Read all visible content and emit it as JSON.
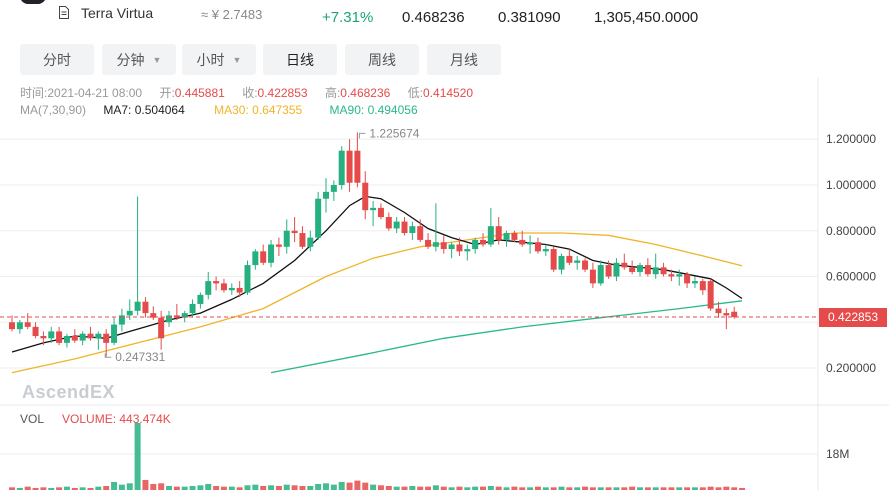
{
  "header": {
    "coin_name": "Terra Virtua",
    "approx_price": "≈ ¥ 2.7483",
    "change": "+7.31%",
    "high_24h": "0.468236",
    "low_24h": "0.381090",
    "volume_24h": "1,305,450.0000"
  },
  "tabs": [
    {
      "label": "分时",
      "dropdown": false,
      "active": false
    },
    {
      "label": "分钟",
      "dropdown": true,
      "active": false
    },
    {
      "label": "小时",
      "dropdown": true,
      "active": false
    },
    {
      "label": "日线",
      "dropdown": false,
      "active": true
    },
    {
      "label": "周线",
      "dropdown": false,
      "active": false
    },
    {
      "label": "月线",
      "dropdown": false,
      "active": false
    }
  ],
  "info": {
    "time_label": "时间:",
    "time_value": "2021-04-21 08:00",
    "open_label": "开:",
    "open_value": "0.445881",
    "close_label": "收:",
    "close_value": "0.422853",
    "high_label": "高:",
    "high_value": "0.468236",
    "low_label": "低:",
    "low_value": "0.414520"
  },
  "ma": {
    "title": "MA(7,30,90)",
    "ma7_label": "MA7: 0.504064",
    "ma30_label": "MA30: 0.647355",
    "ma90_label": "MA90: 0.494056"
  },
  "volume": {
    "title": "VOL",
    "label": "VOLUME: 443.474K",
    "axis_label": "18M"
  },
  "watermark": "AscendEX",
  "current_price_tag": "0.422853",
  "colors": {
    "up": "#26b07f",
    "down": "#e54b4b",
    "ma7": "#111111",
    "ma30": "#f0b429",
    "ma90": "#2ab88a",
    "grid": "#eeeeee"
  },
  "chart_data": {
    "type": "candlestick",
    "y_axis": {
      "ticks": [
        "1.200000",
        "1.000000",
        "0.800000",
        "0.600000",
        "0.200000"
      ],
      "tick_values": [
        1.2,
        1.0,
        0.8,
        0.6,
        0.2
      ],
      "range": [
        0.05,
        1.31
      ]
    },
    "annotations": {
      "max_label": "1.225674",
      "max_value": 1.225674,
      "max_index": 44,
      "min_label": "0.247331",
      "min_value": 0.247331,
      "min_index": 12,
      "current_value": 0.422853
    },
    "candles": [
      {
        "o": 0.4,
        "h": 0.43,
        "l": 0.36,
        "c": 0.37
      },
      {
        "o": 0.37,
        "h": 0.41,
        "l": 0.35,
        "c": 0.4
      },
      {
        "o": 0.4,
        "h": 0.44,
        "l": 0.37,
        "c": 0.38
      },
      {
        "o": 0.38,
        "h": 0.4,
        "l": 0.33,
        "c": 0.34
      },
      {
        "o": 0.34,
        "h": 0.36,
        "l": 0.3,
        "c": 0.33
      },
      {
        "o": 0.33,
        "h": 0.38,
        "l": 0.31,
        "c": 0.36
      },
      {
        "o": 0.36,
        "h": 0.38,
        "l": 0.3,
        "c": 0.31
      },
      {
        "o": 0.31,
        "h": 0.35,
        "l": 0.29,
        "c": 0.34
      },
      {
        "o": 0.34,
        "h": 0.37,
        "l": 0.31,
        "c": 0.32
      },
      {
        "o": 0.32,
        "h": 0.36,
        "l": 0.3,
        "c": 0.35
      },
      {
        "o": 0.35,
        "h": 0.38,
        "l": 0.32,
        "c": 0.33
      },
      {
        "o": 0.33,
        "h": 0.36,
        "l": 0.28,
        "c": 0.35
      },
      {
        "o": 0.35,
        "h": 0.37,
        "l": 0.25,
        "c": 0.31
      },
      {
        "o": 0.31,
        "h": 0.42,
        "l": 0.3,
        "c": 0.39
      },
      {
        "o": 0.39,
        "h": 0.46,
        "l": 0.36,
        "c": 0.43
      },
      {
        "o": 0.43,
        "h": 0.5,
        "l": 0.41,
        "c": 0.45
      },
      {
        "o": 0.45,
        "h": 0.95,
        "l": 0.43,
        "c": 0.49
      },
      {
        "o": 0.49,
        "h": 0.51,
        "l": 0.42,
        "c": 0.44
      },
      {
        "o": 0.44,
        "h": 0.47,
        "l": 0.41,
        "c": 0.42
      },
      {
        "o": 0.42,
        "h": 0.45,
        "l": 0.28,
        "c": 0.33
      },
      {
        "o": 0.4,
        "h": 0.45,
        "l": 0.38,
        "c": 0.43
      },
      {
        "o": 0.43,
        "h": 0.48,
        "l": 0.41,
        "c": 0.42
      },
      {
        "o": 0.42,
        "h": 0.45,
        "l": 0.4,
        "c": 0.44
      },
      {
        "o": 0.44,
        "h": 0.5,
        "l": 0.42,
        "c": 0.48
      },
      {
        "o": 0.48,
        "h": 0.53,
        "l": 0.46,
        "c": 0.52
      },
      {
        "o": 0.52,
        "h": 0.62,
        "l": 0.5,
        "c": 0.58
      },
      {
        "o": 0.58,
        "h": 0.6,
        "l": 0.54,
        "c": 0.57
      },
      {
        "o": 0.57,
        "h": 0.59,
        "l": 0.53,
        "c": 0.54
      },
      {
        "o": 0.54,
        "h": 0.57,
        "l": 0.52,
        "c": 0.55
      },
      {
        "o": 0.55,
        "h": 0.58,
        "l": 0.51,
        "c": 0.53
      },
      {
        "o": 0.53,
        "h": 0.67,
        "l": 0.52,
        "c": 0.65
      },
      {
        "o": 0.65,
        "h": 0.72,
        "l": 0.63,
        "c": 0.71
      },
      {
        "o": 0.71,
        "h": 0.74,
        "l": 0.65,
        "c": 0.66
      },
      {
        "o": 0.66,
        "h": 0.76,
        "l": 0.64,
        "c": 0.74
      },
      {
        "o": 0.74,
        "h": 0.77,
        "l": 0.69,
        "c": 0.73
      },
      {
        "o": 0.73,
        "h": 0.85,
        "l": 0.7,
        "c": 0.8
      },
      {
        "o": 0.8,
        "h": 0.86,
        "l": 0.75,
        "c": 0.79
      },
      {
        "o": 0.79,
        "h": 0.82,
        "l": 0.72,
        "c": 0.73
      },
      {
        "o": 0.73,
        "h": 0.8,
        "l": 0.71,
        "c": 0.77
      },
      {
        "o": 0.77,
        "h": 0.97,
        "l": 0.76,
        "c": 0.94
      },
      {
        "o": 0.94,
        "h": 1.03,
        "l": 0.88,
        "c": 0.97
      },
      {
        "o": 0.97,
        "h": 1.02,
        "l": 0.93,
        "c": 1.0
      },
      {
        "o": 1.0,
        "h": 1.17,
        "l": 0.98,
        "c": 1.15
      },
      {
        "o": 1.15,
        "h": 1.2,
        "l": 0.97,
        "c": 1.01
      },
      {
        "o": 1.15,
        "h": 1.23,
        "l": 0.99,
        "c": 1.01
      },
      {
        "o": 1.01,
        "h": 1.06,
        "l": 0.85,
        "c": 0.89
      },
      {
        "o": 0.89,
        "h": 0.93,
        "l": 0.82,
        "c": 0.9
      },
      {
        "o": 0.9,
        "h": 0.92,
        "l": 0.85,
        "c": 0.86
      },
      {
        "o": 0.86,
        "h": 0.88,
        "l": 0.8,
        "c": 0.81
      },
      {
        "o": 0.81,
        "h": 0.86,
        "l": 0.79,
        "c": 0.84
      },
      {
        "o": 0.84,
        "h": 0.86,
        "l": 0.78,
        "c": 0.79
      },
      {
        "o": 0.79,
        "h": 0.84,
        "l": 0.76,
        "c": 0.82
      },
      {
        "o": 0.82,
        "h": 0.85,
        "l": 0.75,
        "c": 0.76
      },
      {
        "o": 0.76,
        "h": 0.79,
        "l": 0.72,
        "c": 0.73
      },
      {
        "o": 0.73,
        "h": 0.92,
        "l": 0.71,
        "c": 0.75
      },
      {
        "o": 0.75,
        "h": 0.78,
        "l": 0.7,
        "c": 0.72
      },
      {
        "o": 0.72,
        "h": 0.75,
        "l": 0.68,
        "c": 0.74
      },
      {
        "o": 0.74,
        "h": 0.77,
        "l": 0.69,
        "c": 0.71
      },
      {
        "o": 0.71,
        "h": 0.74,
        "l": 0.67,
        "c": 0.72
      },
      {
        "o": 0.72,
        "h": 0.77,
        "l": 0.7,
        "c": 0.76
      },
      {
        "o": 0.76,
        "h": 0.79,
        "l": 0.73,
        "c": 0.74
      },
      {
        "o": 0.74,
        "h": 0.9,
        "l": 0.73,
        "c": 0.82
      },
      {
        "o": 0.82,
        "h": 0.86,
        "l": 0.74,
        "c": 0.76
      },
      {
        "o": 0.76,
        "h": 0.8,
        "l": 0.73,
        "c": 0.79
      },
      {
        "o": 0.79,
        "h": 0.8,
        "l": 0.75,
        "c": 0.76
      },
      {
        "o": 0.76,
        "h": 0.8,
        "l": 0.73,
        "c": 0.74
      },
      {
        "o": 0.74,
        "h": 0.78,
        "l": 0.7,
        "c": 0.75
      },
      {
        "o": 0.75,
        "h": 0.77,
        "l": 0.7,
        "c": 0.71
      },
      {
        "o": 0.71,
        "h": 0.74,
        "l": 0.69,
        "c": 0.72
      },
      {
        "o": 0.72,
        "h": 0.73,
        "l": 0.62,
        "c": 0.63
      },
      {
        "o": 0.63,
        "h": 0.7,
        "l": 0.61,
        "c": 0.69
      },
      {
        "o": 0.69,
        "h": 0.72,
        "l": 0.65,
        "c": 0.66
      },
      {
        "o": 0.66,
        "h": 0.69,
        "l": 0.63,
        "c": 0.67
      },
      {
        "o": 0.67,
        "h": 0.68,
        "l": 0.62,
        "c": 0.63
      },
      {
        "o": 0.63,
        "h": 0.66,
        "l": 0.55,
        "c": 0.57
      },
      {
        "o": 0.57,
        "h": 0.67,
        "l": 0.56,
        "c": 0.65
      },
      {
        "o": 0.65,
        "h": 0.67,
        "l": 0.59,
        "c": 0.6
      },
      {
        "o": 0.6,
        "h": 0.68,
        "l": 0.58,
        "c": 0.66
      },
      {
        "o": 0.66,
        "h": 0.7,
        "l": 0.63,
        "c": 0.64
      },
      {
        "o": 0.64,
        "h": 0.67,
        "l": 0.61,
        "c": 0.62
      },
      {
        "o": 0.62,
        "h": 0.66,
        "l": 0.6,
        "c": 0.65
      },
      {
        "o": 0.65,
        "h": 0.68,
        "l": 0.6,
        "c": 0.61
      },
      {
        "o": 0.61,
        "h": 0.7,
        "l": 0.59,
        "c": 0.64
      },
      {
        "o": 0.64,
        "h": 0.66,
        "l": 0.6,
        "c": 0.61
      },
      {
        "o": 0.61,
        "h": 0.63,
        "l": 0.58,
        "c": 0.6
      },
      {
        "o": 0.6,
        "h": 0.63,
        "l": 0.56,
        "c": 0.61
      },
      {
        "o": 0.61,
        "h": 0.62,
        "l": 0.55,
        "c": 0.57
      },
      {
        "o": 0.57,
        "h": 0.6,
        "l": 0.55,
        "c": 0.58
      },
      {
        "o": 0.58,
        "h": 0.59,
        "l": 0.52,
        "c": 0.54
      },
      {
        "o": 0.58,
        "h": 0.59,
        "l": 0.45,
        "c": 0.46
      },
      {
        "o": 0.46,
        "h": 0.49,
        "l": 0.42,
        "c": 0.44
      },
      {
        "o": 0.44,
        "h": 0.46,
        "l": 0.37,
        "c": 0.43
      },
      {
        "o": 0.446,
        "h": 0.468,
        "l": 0.415,
        "c": 0.423
      }
    ],
    "ma7": [
      [
        0,
        0.27
      ],
      [
        4,
        0.31
      ],
      [
        8,
        0.34
      ],
      [
        12,
        0.33
      ],
      [
        16,
        0.37
      ],
      [
        20,
        0.41
      ],
      [
        24,
        0.44
      ],
      [
        28,
        0.5
      ],
      [
        32,
        0.57
      ],
      [
        36,
        0.67
      ],
      [
        40,
        0.8
      ],
      [
        43,
        0.91
      ],
      [
        45,
        0.95
      ],
      [
        47,
        0.94
      ],
      [
        50,
        0.88
      ],
      [
        53,
        0.81
      ],
      [
        56,
        0.77
      ],
      [
        59,
        0.74
      ],
      [
        62,
        0.76
      ],
      [
        65,
        0.75
      ],
      [
        68,
        0.74
      ],
      [
        71,
        0.72
      ],
      [
        74,
        0.67
      ],
      [
        77,
        0.65
      ],
      [
        80,
        0.64
      ],
      [
        83,
        0.63
      ],
      [
        86,
        0.61
      ],
      [
        89,
        0.59
      ],
      [
        91,
        0.55
      ],
      [
        93,
        0.504
      ]
    ],
    "ma30": [
      [
        0,
        0.18
      ],
      [
        8,
        0.24
      ],
      [
        16,
        0.31
      ],
      [
        24,
        0.38
      ],
      [
        32,
        0.46
      ],
      [
        40,
        0.6
      ],
      [
        46,
        0.68
      ],
      [
        52,
        0.73
      ],
      [
        58,
        0.76
      ],
      [
        64,
        0.79
      ],
      [
        70,
        0.79
      ],
      [
        76,
        0.78
      ],
      [
        82,
        0.74
      ],
      [
        88,
        0.69
      ],
      [
        93,
        0.647
      ]
    ],
    "ma90": [
      [
        33,
        0.18
      ],
      [
        45,
        0.26
      ],
      [
        55,
        0.33
      ],
      [
        65,
        0.38
      ],
      [
        75,
        0.42
      ],
      [
        85,
        0.46
      ],
      [
        93,
        0.494
      ]
    ],
    "volume": [
      0.04,
      0.03,
      0.05,
      0.03,
      0.04,
      0.03,
      0.04,
      0.05,
      0.03,
      0.04,
      0.03,
      0.05,
      0.06,
      0.12,
      0.08,
      0.1,
      1.0,
      0.15,
      0.09,
      0.1,
      0.06,
      0.05,
      0.05,
      0.06,
      0.07,
      0.09,
      0.06,
      0.05,
      0.05,
      0.04,
      0.07,
      0.08,
      0.06,
      0.07,
      0.06,
      0.08,
      0.07,
      0.06,
      0.06,
      0.09,
      0.1,
      0.08,
      0.12,
      0.11,
      0.14,
      0.11,
      0.08,
      0.07,
      0.06,
      0.05,
      0.05,
      0.06,
      0.05,
      0.05,
      0.07,
      0.05,
      0.04,
      0.05,
      0.04,
      0.05,
      0.05,
      0.06,
      0.05,
      0.04,
      0.05,
      0.04,
      0.04,
      0.05,
      0.04,
      0.04,
      0.05,
      0.04,
      0.04,
      0.05,
      0.04,
      0.04,
      0.04,
      0.04,
      0.04,
      0.05,
      0.04,
      0.04,
      0.04,
      0.04,
      0.04,
      0.04,
      0.04,
      0.04,
      0.04,
      0.05,
      0.04,
      0.05,
      0.04,
      0.03
    ]
  }
}
